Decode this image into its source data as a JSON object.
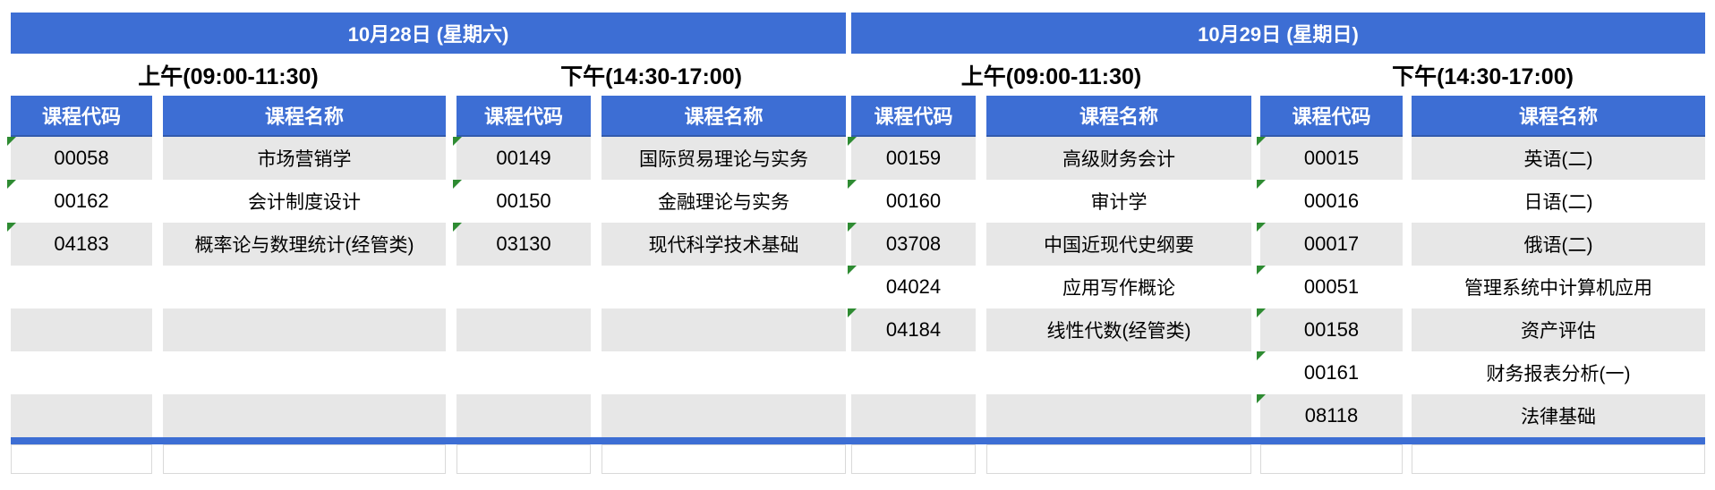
{
  "table": {
    "col_header_code": "课程代码",
    "col_header_name": "课程名称",
    "row_count": 7,
    "days": [
      {
        "date_label": "10月28日 (星期六)",
        "sessions": [
          {
            "time_label": "上午(09:00-11:30)",
            "courses": [
              {
                "code": "00058",
                "name": "市场营销学"
              },
              {
                "code": "00162",
                "name": "会计制度设计"
              },
              {
                "code": "04183",
                "name": "概率论与数理统计(经管类)"
              }
            ]
          },
          {
            "time_label": "下午(14:30-17:00)",
            "courses": [
              {
                "code": "00149",
                "name": "国际贸易理论与实务"
              },
              {
                "code": "00150",
                "name": "金融理论与实务"
              },
              {
                "code": "03130",
                "name": "现代科学技术基础"
              }
            ]
          }
        ]
      },
      {
        "date_label": "10月29日 (星期日)",
        "sessions": [
          {
            "time_label": "上午(09:00-11:30)",
            "courses": [
              {
                "code": "00159",
                "name": "高级财务会计"
              },
              {
                "code": "00160",
                "name": "审计学"
              },
              {
                "code": "03708",
                "name": "中国近现代史纲要"
              },
              {
                "code": "04024",
                "name": "应用写作概论"
              },
              {
                "code": "04184",
                "name": "线性代数(经管类)"
              }
            ]
          },
          {
            "time_label": "下午(14:30-17:00)",
            "courses": [
              {
                "code": "00015",
                "name": "英语(二)"
              },
              {
                "code": "00016",
                "name": "日语(二)"
              },
              {
                "code": "00017",
                "name": "俄语(二)"
              },
              {
                "code": "00051",
                "name": "管理系统中计算机应用"
              },
              {
                "code": "00158",
                "name": "资产评估"
              },
              {
                "code": "00161",
                "name": "财务报表分析(一)"
              },
              {
                "code": "08118",
                "name": "法律基础"
              }
            ]
          }
        ]
      }
    ]
  },
  "icons": {
    "cell_flag": "green-triangle-icon"
  },
  "colors": {
    "header_blue": "#3d6ed4",
    "divider_blue": "#3d6ed4",
    "stripe_gray": "#e7e7e7",
    "flag_green": "#2e8b32",
    "border_gray": "#d9d9d9"
  }
}
